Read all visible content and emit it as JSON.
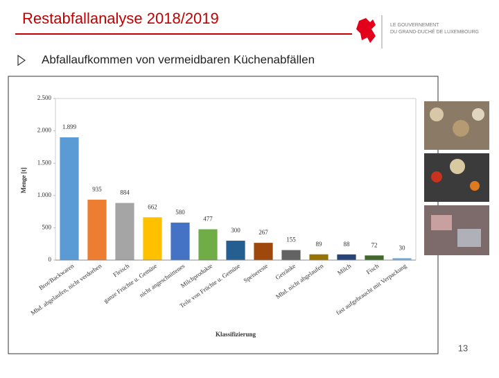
{
  "slide": {
    "title": "Restabfallanalyse 2018/2019",
    "bullet": "Abfallaufkommen von vermeidbaren Küchenabfällen",
    "logo_line1": "LE GOUVERNEMENT",
    "logo_line2": "DU GRAND-DUCHÉ DE LUXEMBOURG",
    "page_number": "13"
  },
  "chart_data": {
    "type": "bar",
    "x_label": "Klassifizierung",
    "y_label": "Menge [t]",
    "categories": [
      "Brot/Backwaren",
      "Mhd. abgelaufen, nicht verdorben",
      "Fleisch",
      "ganze Früchte u. Gemüse",
      "nicht angeschnittenes",
      "Milchprodukte",
      "Teile von Früchte u. Gemüse",
      "Speisereste",
      "Getränke",
      "Mhd. nicht abgelaufen",
      "Milch",
      "Fisch",
      "fast aufgebraucht mit Verpackung"
    ],
    "values": [
      1899,
      935,
      884,
      662,
      580,
      477,
      300,
      267,
      155,
      89,
      88,
      72,
      30
    ],
    "value_labels": [
      "1.899",
      "935",
      "884",
      "662",
      "580",
      "477",
      "300",
      "267",
      "155",
      "89",
      "88",
      "72",
      "30"
    ],
    "colors": [
      "#5b9bd5",
      "#ed7d31",
      "#a5a5a5",
      "#ffc000",
      "#4472c4",
      "#70ad47",
      "#255e91",
      "#9e480e",
      "#636363",
      "#997300",
      "#264478",
      "#43682b",
      "#7cafdd"
    ],
    "ylim": [
      0,
      2500
    ],
    "yticks": [
      0,
      500,
      {
        "value": 1000,
        "label": "1.000"
      },
      {
        "value": 1500,
        "label": "1.500"
      },
      {
        "value": 2000,
        "label": "2.000"
      },
      {
        "value": 2500,
        "label": "2.500"
      }
    ],
    "grid": false
  }
}
